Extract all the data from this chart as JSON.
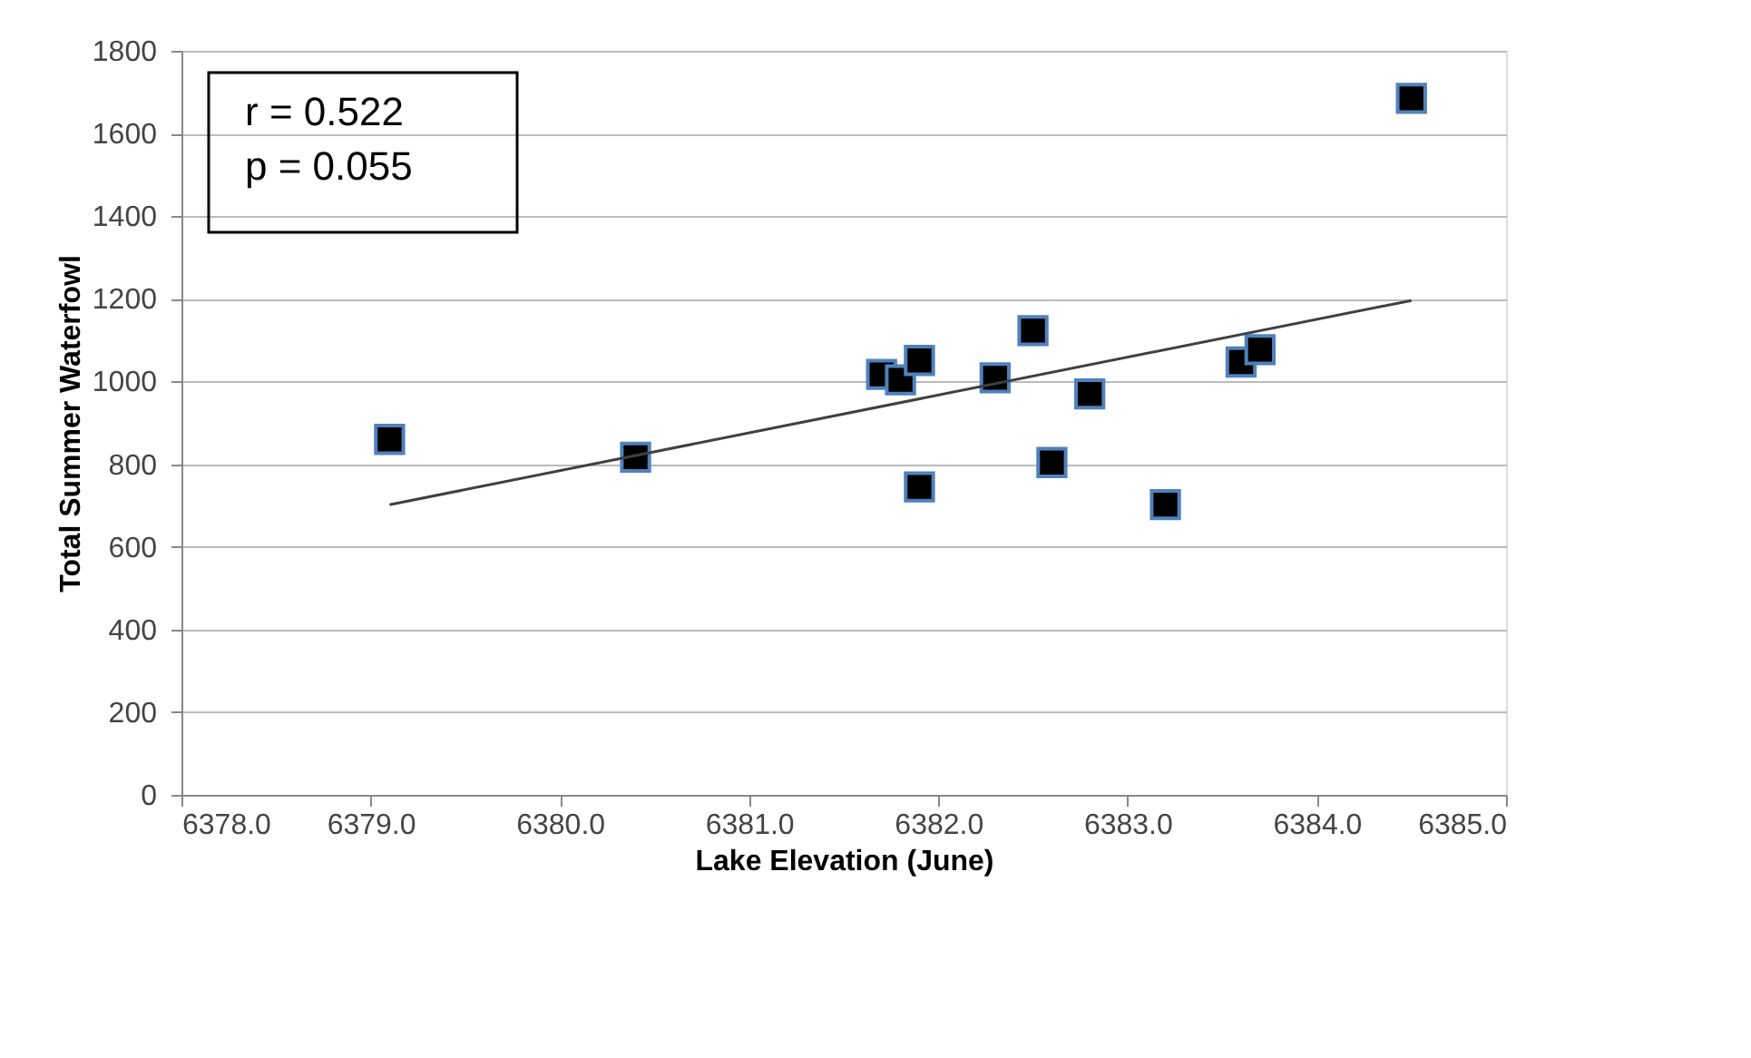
{
  "chart_data": {
    "type": "scatter",
    "xlabel": "Lake Elevation (June)",
    "ylabel": "Total Summer Waterfowl",
    "annotations": [
      "r = 0.522\np = 0.055"
    ],
    "series": [
      {
        "color": "#000000",
        "marker": "square",
        "x": [
          6379.1,
          6380.4,
          6381.7,
          6381.8,
          6381.9,
          6381.9,
          6382.3,
          6382.5,
          6382.6,
          6382.8,
          6383.2,
          6383.6,
          6383.7,
          6384.5
        ],
        "values": [
          860,
          817,
          1017,
          1004,
          1051,
          745,
          1009,
          1123,
          804,
          970,
          702,
          1047,
          1077,
          1685
        ]
      },
      {
        "type": "line",
        "color": "#404040",
        "x": [
          6379.1,
          6384.5
        ],
        "values": [
          702,
          1196
        ]
      }
    ],
    "xlim": [
      6378,
      6385
    ],
    "ylim": [
      0,
      1800
    ],
    "xticks": [
      {
        "value": 6378,
        "label": "6378.0"
      },
      {
        "value": 6379,
        "label": "6379.0"
      },
      {
        "value": 6380,
        "label": "6380.0"
      },
      {
        "value": 6381,
        "label": "6381.0"
      },
      {
        "value": 6382,
        "label": "6382.0"
      },
      {
        "value": 6383,
        "label": "6383.0"
      },
      {
        "value": 6384,
        "label": "6384.0"
      },
      {
        "value": 6385,
        "label": "6385.0"
      }
    ],
    "yticks": [
      0,
      200,
      400,
      600,
      800,
      1000,
      1200,
      1400,
      1600,
      1800
    ],
    "grid": "y"
  }
}
